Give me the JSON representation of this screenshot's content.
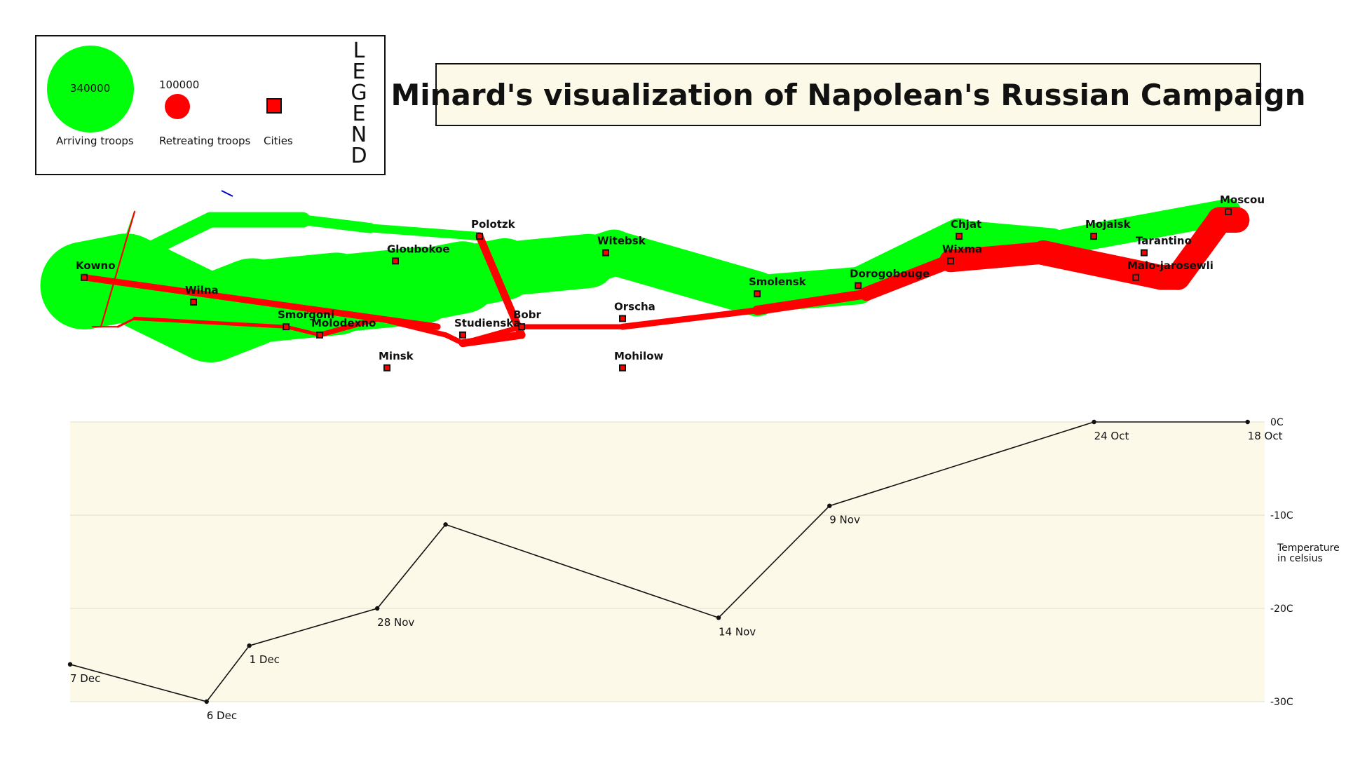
{
  "title": "Minard's visualization of Napolean's Russian Campaign",
  "legend": {
    "word": "LEGEND",
    "arriving_value": "340000",
    "arriving_label": "Arriving troops",
    "retreating_value": "100000",
    "retreating_label": "Retreating troops",
    "cities_label": "Cities"
  },
  "colors": {
    "advance": "#00ff0a",
    "retreat": "#ff0000",
    "city": "#ff0000",
    "temperature_bg": "#fdf9e8",
    "temperature_line": "#111111"
  },
  "chart_data": [
    {
      "type": "map",
      "title": "Minard's visualization of Napolean's Russian Campaign",
      "xlim": [
        23.5,
        38.5
      ],
      "ylim": [
        53.6,
        56.2
      ],
      "cities": [
        {
          "name": "Kowno",
          "lon": 24.0,
          "lat": 55.0
        },
        {
          "name": "Wilna",
          "lon": 25.3,
          "lat": 54.7
        },
        {
          "name": "Smorgoni",
          "lon": 26.4,
          "lat": 54.4
        },
        {
          "name": "Molodexno",
          "lon": 26.8,
          "lat": 54.3
        },
        {
          "name": "Gloubokoe",
          "lon": 27.7,
          "lat": 55.2
        },
        {
          "name": "Minsk",
          "lon": 27.6,
          "lat": 53.9
        },
        {
          "name": "Studienska",
          "lon": 28.5,
          "lat": 54.3
        },
        {
          "name": "Polotzk",
          "lon": 28.7,
          "lat": 55.5
        },
        {
          "name": "Bobr",
          "lon": 29.2,
          "lat": 54.4
        },
        {
          "name": "Witebsk",
          "lon": 30.2,
          "lat": 55.3
        },
        {
          "name": "Orscha",
          "lon": 30.4,
          "lat": 54.5
        },
        {
          "name": "Mohilow",
          "lon": 30.4,
          "lat": 53.9
        },
        {
          "name": "Smolensk",
          "lon": 32.0,
          "lat": 54.8
        },
        {
          "name": "Dorogobouge",
          "lon": 33.2,
          "lat": 54.9
        },
        {
          "name": "Wixma",
          "lon": 34.3,
          "lat": 55.2
        },
        {
          "name": "Chjat",
          "lon": 34.4,
          "lat": 55.5
        },
        {
          "name": "Mojaisk",
          "lon": 36.0,
          "lat": 55.5
        },
        {
          "name": "Moscou",
          "lon": 37.6,
          "lat": 55.8
        },
        {
          "name": "Tarantino",
          "lon": 36.6,
          "lat": 55.3
        },
        {
          "name": "Malo-jarosewli",
          "lon": 36.5,
          "lat": 55.0
        }
      ],
      "advance": {
        "name": "Arriving troops",
        "main": [
          {
            "lon": 24.0,
            "lat": 54.9,
            "survivors": 340000
          },
          {
            "lon": 24.5,
            "lat": 55.0,
            "survivors": 340000
          },
          {
            "lon": 25.5,
            "lat": 54.5,
            "survivors": 340000
          },
          {
            "lon": 26.0,
            "lat": 54.7,
            "survivors": 320000
          },
          {
            "lon": 27.0,
            "lat": 54.8,
            "survivors": 300000
          },
          {
            "lon": 28.0,
            "lat": 54.9,
            "survivors": 280000
          },
          {
            "lon": 28.5,
            "lat": 55.0,
            "survivors": 240000
          },
          {
            "lon": 29.0,
            "lat": 55.1,
            "survivors": 210000
          },
          {
            "lon": 30.0,
            "lat": 55.2,
            "survivors": 180000
          },
          {
            "lon": 30.3,
            "lat": 55.3,
            "survivors": 175000
          },
          {
            "lon": 32.0,
            "lat": 54.8,
            "survivors": 145000
          },
          {
            "lon": 33.2,
            "lat": 54.9,
            "survivors": 140000
          },
          {
            "lon": 34.4,
            "lat": 55.5,
            "survivors": 127100
          },
          {
            "lon": 35.5,
            "lat": 55.4,
            "survivors": 100000
          },
          {
            "lon": 36.0,
            "lat": 55.5,
            "survivors": 100000
          },
          {
            "lon": 37.6,
            "lat": 55.8,
            "survivors": 100000
          }
        ],
        "branch": [
          {
            "lon": 24.0,
            "lat": 55.1,
            "survivors": 60000
          },
          {
            "lon": 24.5,
            "lat": 55.2,
            "survivors": 60000
          },
          {
            "lon": 25.5,
            "lat": 55.7,
            "survivors": 60000
          },
          {
            "lon": 26.6,
            "lat": 55.7,
            "survivors": 40000
          },
          {
            "lon": 27.4,
            "lat": 55.6,
            "survivors": 33000
          },
          {
            "lon": 28.7,
            "lat": 55.5,
            "survivors": 33000
          }
        ],
        "flank": [
          {
            "lon": 24.6,
            "lat": 55.8,
            "survivors": 6000
          },
          {
            "lon": 24.5,
            "lat": 55.5,
            "survivors": 6000
          }
        ]
      },
      "retreat": {
        "name": "Retreating troops",
        "main": [
          {
            "lon": 37.7,
            "lat": 55.7,
            "survivors": 100000
          },
          {
            "lon": 37.5,
            "lat": 55.7,
            "survivors": 98000
          },
          {
            "lon": 37.0,
            "lat": 55.0,
            "survivors": 97000
          },
          {
            "lon": 36.8,
            "lat": 55.0,
            "survivors": 96000
          },
          {
            "lon": 35.4,
            "lat": 55.3,
            "survivors": 87000
          },
          {
            "lon": 34.3,
            "lat": 55.2,
            "survivors": 55000
          },
          {
            "lon": 33.3,
            "lat": 54.8,
            "survivors": 37000
          },
          {
            "lon": 32.0,
            "lat": 54.6,
            "survivors": 24000
          },
          {
            "lon": 30.4,
            "lat": 54.4,
            "survivors": 20000
          },
          {
            "lon": 29.2,
            "lat": 54.4,
            "survivors": 20000
          },
          {
            "lon": 28.5,
            "lat": 54.2,
            "survivors": 20000
          },
          {
            "lon": 28.3,
            "lat": 54.3,
            "survivors": 20000
          },
          {
            "lon": 27.5,
            "lat": 54.5,
            "survivors": 20000
          },
          {
            "lon": 26.8,
            "lat": 54.3,
            "survivors": 12000
          },
          {
            "lon": 26.4,
            "lat": 54.4,
            "survivors": 14000
          },
          {
            "lon": 24.6,
            "lat": 54.5,
            "survivors": 8000
          },
          {
            "lon": 24.4,
            "lat": 54.4,
            "survivors": 4000
          },
          {
            "lon": 24.2,
            "lat": 54.4,
            "survivors": 4000
          },
          {
            "lon": 24.1,
            "lat": 54.4,
            "survivors": 4000
          }
        ],
        "polotzk": [
          {
            "lon": 28.7,
            "lat": 55.5,
            "survivors": 30000
          },
          {
            "lon": 29.2,
            "lat": 54.3,
            "survivors": 30000
          },
          {
            "lon": 28.5,
            "lat": 54.2,
            "survivors": 30000
          }
        ],
        "kowno_link": [
          {
            "lon": 24.0,
            "lat": 55.0,
            "survivors": 25000
          },
          {
            "lon": 28.2,
            "lat": 54.4,
            "survivors": 25000
          }
        ],
        "flank": [
          {
            "lon": 24.6,
            "lat": 55.8,
            "survivors": 6000
          },
          {
            "lon": 24.2,
            "lat": 54.4,
            "survivors": 6000
          },
          {
            "lon": 24.1,
            "lat": 54.4,
            "survivors": 6000
          }
        ]
      }
    },
    {
      "type": "line",
      "ylabel": "Temperature in celsius",
      "ylim": [
        -30,
        0
      ],
      "xlim": [
        23.8,
        37.8
      ],
      "ticks": [
        "0C",
        "-10C",
        "-20C",
        "-30C"
      ],
      "grid": true,
      "points": [
        {
          "lon": 37.6,
          "temp": 0,
          "date": "18 Oct"
        },
        {
          "lon": 35.8,
          "temp": 0,
          "date": "24 Oct"
        },
        {
          "lon": 32.7,
          "temp": -9,
          "date": "9 Nov"
        },
        {
          "lon": 31.4,
          "temp": -21,
          "date": "14 Nov"
        },
        {
          "lon": 28.2,
          "temp": -11,
          "date": ""
        },
        {
          "lon": 27.4,
          "temp": -20,
          "date": "28 Nov"
        },
        {
          "lon": 25.9,
          "temp": -24,
          "date": "1 Dec"
        },
        {
          "lon": 25.4,
          "temp": -30,
          "date": "6 Dec"
        },
        {
          "lon": 23.8,
          "temp": -26,
          "date": "7 Dec"
        }
      ]
    }
  ]
}
